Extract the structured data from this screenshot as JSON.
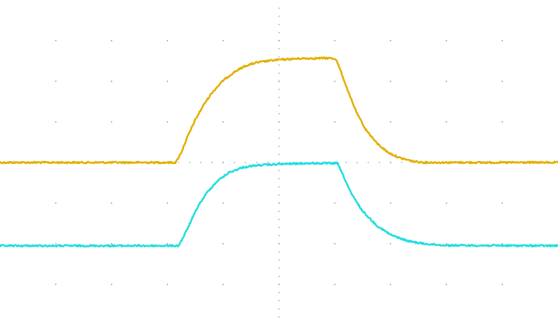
{
  "chart_data": {
    "type": "line",
    "grid": true,
    "grid_style": "dotted",
    "divisions": {
      "horizontal": 10,
      "vertical": 8
    },
    "x_range": [
      0,
      10
    ],
    "y_range": [
      -4,
      4
    ],
    "series": [
      {
        "color": "#e2b000",
        "points": [
          [
            0.0,
            0.0
          ],
          [
            3.15,
            0.0
          ],
          [
            3.25,
            0.25
          ],
          [
            3.35,
            0.6
          ],
          [
            3.5,
            1.05
          ],
          [
            3.65,
            1.42
          ],
          [
            3.8,
            1.72
          ],
          [
            4.0,
            2.02
          ],
          [
            4.2,
            2.23
          ],
          [
            4.4,
            2.38
          ],
          [
            4.6,
            2.46
          ],
          [
            4.8,
            2.5
          ],
          [
            5.0,
            2.53
          ],
          [
            5.4,
            2.56
          ],
          [
            5.9,
            2.57
          ],
          [
            6.02,
            2.55
          ],
          [
            6.12,
            2.2
          ],
          [
            6.25,
            1.7
          ],
          [
            6.4,
            1.2
          ],
          [
            6.55,
            0.82
          ],
          [
            6.75,
            0.48
          ],
          [
            6.95,
            0.25
          ],
          [
            7.15,
            0.12
          ],
          [
            7.4,
            0.03
          ],
          [
            7.6,
            0.0
          ],
          [
            10.0,
            0.0
          ]
        ]
      },
      {
        "color": "#22dde0",
        "points": [
          [
            0.0,
            -2.05
          ],
          [
            3.2,
            -2.05
          ],
          [
            3.3,
            -1.8
          ],
          [
            3.42,
            -1.45
          ],
          [
            3.56,
            -1.05
          ],
          [
            3.72,
            -0.72
          ],
          [
            3.9,
            -0.45
          ],
          [
            4.1,
            -0.25
          ],
          [
            4.35,
            -0.12
          ],
          [
            4.6,
            -0.07
          ],
          [
            5.0,
            -0.04
          ],
          [
            5.5,
            -0.02
          ],
          [
            6.05,
            -0.02
          ],
          [
            6.15,
            -0.32
          ],
          [
            6.3,
            -0.78
          ],
          [
            6.5,
            -1.2
          ],
          [
            6.75,
            -1.55
          ],
          [
            7.0,
            -1.78
          ],
          [
            7.3,
            -1.93
          ],
          [
            7.6,
            -2.0
          ],
          [
            8.0,
            -2.04
          ],
          [
            10.0,
            -2.05
          ]
        ]
      }
    ]
  }
}
